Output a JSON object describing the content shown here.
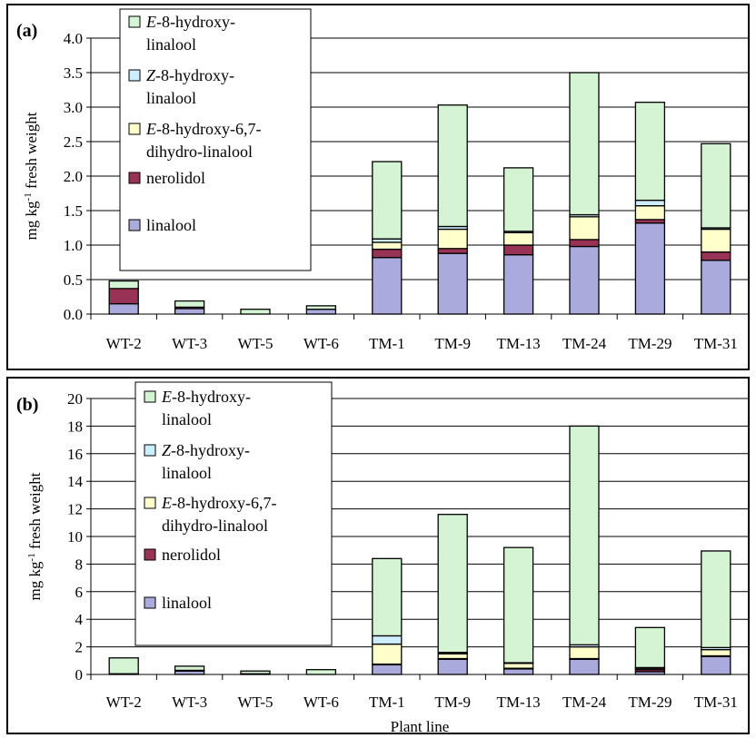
{
  "chart_data": [
    {
      "panel_label": "(a)",
      "type": "bar",
      "stacked": true,
      "ylabel": "mg kg-1 fresh weight",
      "ylabel_main": "mg kg",
      "ylabel_sup": "-1",
      "ylabel_rest": " fresh weight",
      "xlabel": "",
      "ylim": [
        0,
        4.0
      ],
      "yticks": [
        "0.0",
        "0.5",
        "1.0",
        "1.5",
        "2.0",
        "2.5",
        "3.0",
        "3.5",
        "4.0"
      ],
      "grid": true,
      "legend_position": "top-left",
      "categories": [
        "WT-2",
        "WT-3",
        "WT-5",
        "WT-6",
        "TM-1",
        "TM-9",
        "TM-13",
        "TM-24",
        "TM-29",
        "TM-31"
      ],
      "series": [
        {
          "name": "linalool",
          "color": "#aaaadd",
          "values": [
            0.15,
            0.08,
            0.0,
            0.07,
            0.82,
            0.88,
            0.86,
            0.98,
            1.32,
            0.78
          ]
        },
        {
          "name": "nerolidol",
          "color": "#993355",
          "values": [
            0.22,
            0.02,
            0.0,
            0.0,
            0.12,
            0.07,
            0.14,
            0.1,
            0.05,
            0.12
          ]
        },
        {
          "name": "E-8-hydroxy-6,7-dihydro-linalool",
          "color": "#ffffcc",
          "values": [
            0.0,
            0.0,
            0.0,
            0.0,
            0.1,
            0.28,
            0.18,
            0.33,
            0.2,
            0.33
          ]
        },
        {
          "name": "Z-8-hydroxy-linalool",
          "color": "#cceeff",
          "values": [
            0.0,
            0.0,
            0.0,
            0.0,
            0.05,
            0.04,
            0.02,
            0.03,
            0.08,
            0.02
          ]
        },
        {
          "name": "E-8-hydroxy-linalool",
          "color": "#d4f4d4",
          "values": [
            0.11,
            0.09,
            0.07,
            0.05,
            1.12,
            1.76,
            0.92,
            2.06,
            1.42,
            1.22
          ]
        }
      ],
      "legend": [
        {
          "prefix": "E",
          "lines": [
            "-8-hydroxy-",
            "linalool"
          ],
          "color": "#d4f4d4"
        },
        {
          "prefix": "Z",
          "lines": [
            "-8-hydroxy-",
            "linalool"
          ],
          "color": "#cceeff"
        },
        {
          "prefix": "E",
          "lines": [
            "-8-hydroxy-6,7-",
            "dihydro-linalool"
          ],
          "color": "#ffffcc"
        },
        {
          "prefix": "",
          "lines": [
            "nerolidol"
          ],
          "color": "#993355"
        },
        {
          "prefix": "",
          "lines": [
            "linalool"
          ],
          "color": "#aaaadd"
        }
      ]
    },
    {
      "panel_label": "(b)",
      "type": "bar",
      "stacked": true,
      "ylabel": "mg kg-1 fresh weight",
      "ylabel_main": "mg kg",
      "ylabel_sup": "-1",
      "ylabel_rest": " fresh weight",
      "xlabel": "Plant line",
      "ylim": [
        0,
        20
      ],
      "yticks": [
        "0",
        "2",
        "4",
        "6",
        "8",
        "10",
        "12",
        "14",
        "16",
        "18",
        "20"
      ],
      "grid": true,
      "legend_position": "top-left",
      "categories": [
        "WT-2",
        "WT-3",
        "WT-5",
        "WT-6",
        "TM-1",
        "TM-9",
        "TM-13",
        "TM-24",
        "TM-29",
        "TM-31"
      ],
      "series": [
        {
          "name": "linalool",
          "color": "#aaaadd",
          "values": [
            0.05,
            0.25,
            0.05,
            0.0,
            0.7,
            1.1,
            0.4,
            1.1,
            0.2,
            1.3
          ]
        },
        {
          "name": "nerolidol",
          "color": "#993355",
          "values": [
            0.0,
            0.0,
            0.0,
            0.0,
            0.05,
            0.05,
            0.05,
            0.05,
            0.15,
            0.05
          ]
        },
        {
          "name": "E-8-hydroxy-6,7-dihydro-linalool",
          "color": "#ffffcc",
          "values": [
            0.0,
            0.05,
            0.0,
            0.0,
            1.45,
            0.35,
            0.35,
            0.85,
            0.1,
            0.45
          ]
        },
        {
          "name": "Z-8-hydroxy-linalool",
          "color": "#cceeff",
          "values": [
            0.0,
            0.0,
            0.0,
            0.0,
            0.6,
            0.1,
            0.05,
            0.15,
            0.05,
            0.15
          ]
        },
        {
          "name": "E-8-hydroxy-linalool",
          "color": "#d4f4d4",
          "values": [
            1.15,
            0.3,
            0.2,
            0.35,
            5.6,
            10.0,
            8.35,
            15.85,
            2.9,
            7.0
          ]
        }
      ],
      "legend": [
        {
          "prefix": "E",
          "lines": [
            "-8-hydroxy-",
            "linalool"
          ],
          "color": "#d4f4d4"
        },
        {
          "prefix": "Z",
          "lines": [
            "-8-hydroxy-",
            "linalool"
          ],
          "color": "#cceeff"
        },
        {
          "prefix": "E",
          "lines": [
            "-8-hydroxy-6,7-",
            "dihydro-linalool"
          ],
          "color": "#ffffcc"
        },
        {
          "prefix": "",
          "lines": [
            "nerolidol"
          ],
          "color": "#993355"
        },
        {
          "prefix": "",
          "lines": [
            "linalool"
          ],
          "color": "#aaaadd"
        }
      ]
    }
  ]
}
